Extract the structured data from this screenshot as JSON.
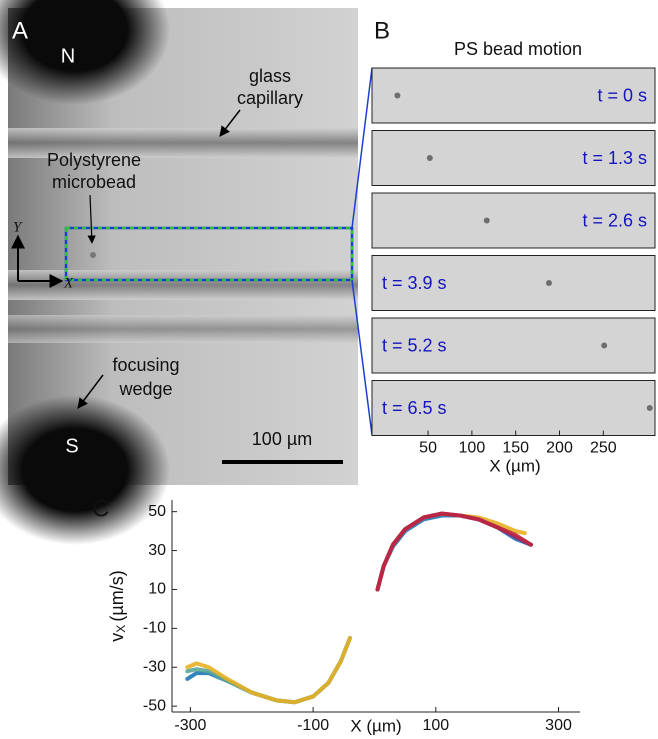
{
  "panel_a": {
    "label": "A",
    "pole_top": "N",
    "pole_bottom": "S",
    "capillary_label": [
      "glass",
      "capillary"
    ],
    "bead_label": [
      "Polystyrene",
      "microbead"
    ],
    "wedge_label": [
      "focusing",
      "wedge"
    ],
    "axis_y": "Y",
    "axis_x": "X",
    "scale_bar": "100 µm"
  },
  "panel_b": {
    "label": "B",
    "title": "PS bead motion",
    "frames": [
      "t = 0 s",
      "t = 1.3 s",
      "t = 2.6 s",
      "t = 3.9 s",
      "t = 5.2 s",
      "t = 6.5 s"
    ],
    "bead_x": [
      15,
      52,
      117,
      188,
      251,
      303
    ],
    "xlabel": "X (µm)",
    "xlim": [
      -14,
      309
    ],
    "xticks": [
      50,
      100,
      150,
      200,
      250
    ]
  },
  "chart_data": {
    "type": "line",
    "label": "C",
    "xlabel": "X (µm)",
    "ylabel": {
      "main": "v",
      "sub": "X",
      "unit": "(µm/s)"
    },
    "xlim": [
      -330,
      335
    ],
    "ylim": [
      -53,
      56
    ],
    "xticks": [
      -300,
      -100,
      100,
      300
    ],
    "yticks": [
      -50,
      -30,
      -10,
      10,
      30,
      50
    ],
    "series": [
      {
        "color": "#1f77b4",
        "x": [
          -305,
          -290,
          -270,
          -240,
          -200,
          -160,
          -130,
          -100,
          -75,
          -55,
          -40
        ],
        "values": [
          -36,
          -33,
          -33,
          -37,
          -43,
          -47,
          -48,
          -45,
          -38,
          -27,
          -15
        ]
      },
      {
        "color": "#5aa89a",
        "x": [
          -305,
          -290,
          -270,
          -240,
          -200,
          -160,
          -130,
          -100,
          -75,
          -55,
          -40
        ],
        "values": [
          -32,
          -31,
          -32,
          -37,
          -43,
          -47,
          -48,
          -45,
          -38,
          -27,
          -15
        ]
      },
      {
        "color": "#e8b021",
        "x": [
          -305,
          -290,
          -270,
          -240,
          -200,
          -160,
          -130,
          -100,
          -75,
          -55,
          -40
        ],
        "values": [
          -30,
          -28,
          -30,
          -36,
          -43,
          -47,
          -48,
          -45,
          -38,
          -27,
          -15
        ]
      },
      {
        "color": "#1f77b4",
        "x": [
          5,
          15,
          30,
          50,
          80,
          110,
          140,
          170,
          200,
          230,
          255
        ],
        "values": [
          10,
          22,
          32,
          40,
          46,
          48,
          48,
          46,
          42,
          36,
          33
        ]
      },
      {
        "color": "#e8b021",
        "x": [
          5,
          15,
          30,
          50,
          80,
          110,
          140,
          170,
          200,
          230,
          245
        ],
        "values": [
          10,
          22,
          33,
          41,
          47,
          49,
          48,
          47,
          44,
          40,
          39
        ]
      },
      {
        "color": "#7e2f8e",
        "x": [
          5,
          15,
          30,
          50,
          80,
          110,
          140,
          170,
          200,
          230,
          255
        ],
        "values": [
          10,
          22,
          33,
          41,
          47,
          49,
          48,
          46,
          42,
          37,
          33
        ]
      },
      {
        "color": "#c0263e",
        "x": [
          5,
          15,
          30,
          50,
          80,
          110,
          140,
          170,
          200,
          230,
          255
        ],
        "values": [
          10,
          22,
          33,
          41,
          47,
          49,
          48,
          46,
          42,
          38,
          33
        ]
      }
    ]
  }
}
